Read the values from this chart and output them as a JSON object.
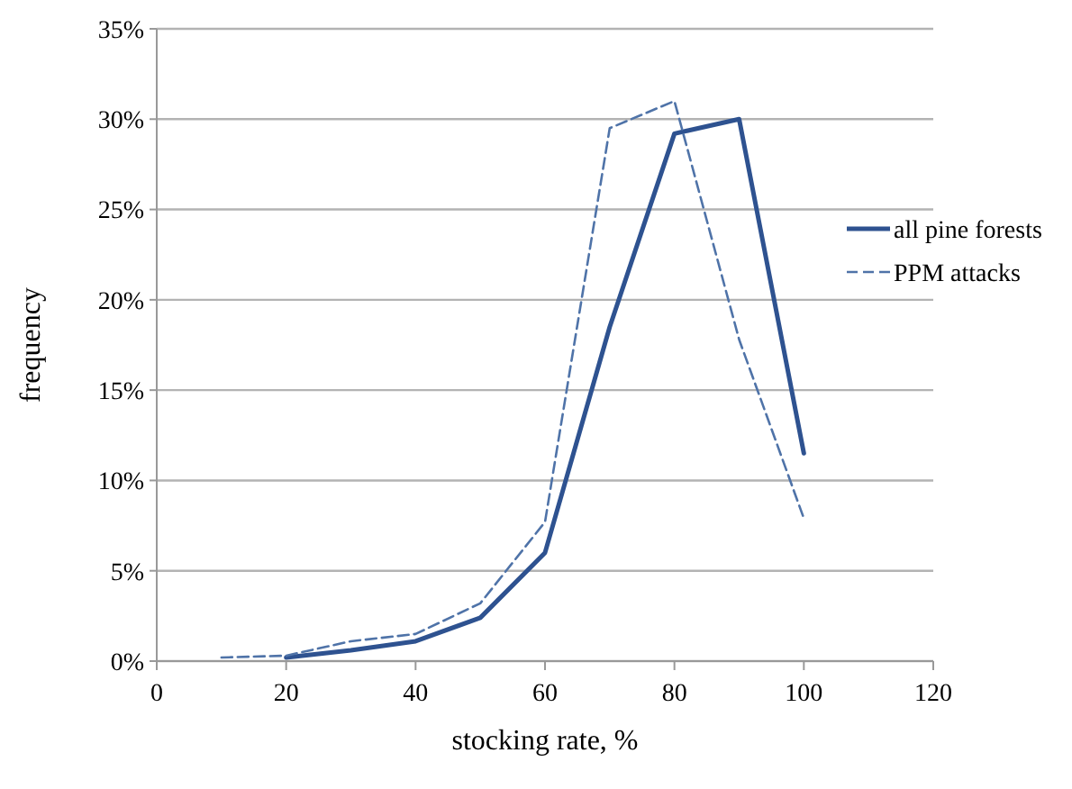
{
  "chart_data": {
    "type": "line",
    "xlabel": "stocking rate, %",
    "ylabel": "frequency",
    "xlim": [
      0,
      120
    ],
    "xticks": [
      0,
      20,
      40,
      60,
      80,
      100,
      120
    ],
    "ylim": [
      0,
      35
    ],
    "yticks": [
      {
        "value": 0,
        "label": "0%"
      },
      {
        "value": 5,
        "label": "5%"
      },
      {
        "value": 10,
        "label": "10%"
      },
      {
        "value": 15,
        "label": "15%"
      },
      {
        "value": 20,
        "label": "20%"
      },
      {
        "value": 25,
        "label": "25%"
      },
      {
        "value": 30,
        "label": "30%"
      },
      {
        "value": 35,
        "label": "35%"
      }
    ],
    "grid": "y",
    "legend": "right",
    "marker": "none",
    "series": [
      {
        "name": "all pine forests",
        "color": "#2e5290",
        "line_style": "solid",
        "x": [
          20,
          30,
          40,
          50,
          60,
          70,
          80,
          90,
          100
        ],
        "values": [
          0.2,
          0.6,
          1.1,
          2.4,
          6.0,
          18.5,
          29.2,
          30.0,
          11.5
        ]
      },
      {
        "name": "PPM attacks",
        "color": "#4f73a8",
        "line_style": "dashed",
        "x": [
          10,
          20,
          30,
          40,
          50,
          60,
          70,
          80,
          90,
          100
        ],
        "values": [
          0.2,
          0.3,
          1.1,
          1.5,
          3.2,
          7.7,
          29.5,
          31.0,
          17.8,
          7.9
        ]
      }
    ]
  }
}
